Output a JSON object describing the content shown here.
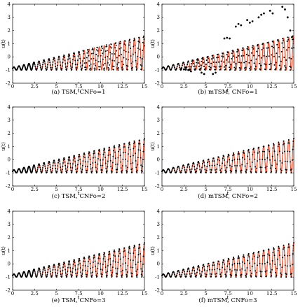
{
  "chart_data": [
    {
      "type": "line",
      "caption": "(a) TSM, CNFo=1",
      "xlabel": "t",
      "ylabel": "u(t)",
      "xlim": [
        0,
        15
      ],
      "ylim": [
        -2,
        4
      ],
      "xticks": [
        "0",
        "2.5",
        "5",
        "7.5",
        "10",
        "12.5",
        "15"
      ],
      "yticks": [
        "-2",
        "-1",
        "0",
        "1",
        "2",
        "3",
        "4"
      ],
      "grid": false,
      "series": [
        {
          "style": "solid",
          "color": "#e8401c",
          "x": [
            0,
            15
          ],
          "y": [
            -0.9,
            0.3
          ]
        },
        {
          "style": "dotted",
          "color": "#000000",
          "x": [
            0,
            15
          ],
          "y": [
            -0.9,
            0.3
          ]
        }
      ],
      "oscillation": {
        "omega": 11,
        "amp_start": 0.1,
        "amp_end": 1.3,
        "offset_start": -0.9,
        "offset_end": 0.3
      },
      "approx_until": 8,
      "approx_phase_drift": 0.55,
      "scatter_markers": false
    },
    {
      "type": "line",
      "caption": "(b) mTSM, CNFo=1",
      "xlabel": "t",
      "ylabel": "u(t)",
      "xlim": [
        0,
        15
      ],
      "ylim": [
        -2,
        4
      ],
      "xticks": [
        "0",
        "2.5",
        "5",
        "7.5",
        "10",
        "12.5",
        "15"
      ],
      "yticks": [
        "-2",
        "-1",
        "0",
        "1",
        "2",
        "3",
        "4"
      ],
      "grid": false,
      "series": [
        {
          "style": "solid",
          "color": "#e8401c"
        },
        {
          "style": "dots",
          "color": "#000000"
        }
      ],
      "oscillation": {
        "omega": 11,
        "amp_start": 0.1,
        "amp_end": 1.3,
        "offset_start": -0.9,
        "offset_end": 0.3
      },
      "approx_until": 3,
      "approx_phase_drift": 0,
      "scatter_markers": true,
      "outlier_clusters": [
        {
          "x": [
            2.2,
            2.5,
            2.7
          ],
          "y": [
            -0.9,
            -0.95,
            -0.8
          ]
        },
        {
          "x": [
            3.0,
            3.3
          ],
          "y": [
            -1.0,
            -1.1
          ]
        },
        {
          "x": [
            4.5,
            4.8
          ],
          "y": [
            -1.2,
            -1.3
          ]
        },
        {
          "x": [
            5.8,
            6.1
          ],
          "y": [
            -1.3,
            -1.2
          ]
        },
        {
          "x": [
            7.1,
            7.4,
            7.7
          ],
          "y": [
            1.4,
            1.45,
            1.4
          ]
        },
        {
          "x": [
            8.4,
            8.7,
            9.0
          ],
          "y": [
            2.3,
            2.5,
            2.4
          ]
        },
        {
          "x": [
            9.7,
            10.0,
            10.3
          ],
          "y": [
            2.8,
            2.6,
            2.7
          ]
        },
        {
          "x": [
            11.0,
            11.3,
            11.6
          ],
          "y": [
            3.0,
            3.2,
            3.3
          ]
        },
        {
          "x": [
            12.3,
            12.6
          ],
          "y": [
            3.5,
            3.3
          ]
        },
        {
          "x": [
            13.7,
            14.0,
            14.3
          ],
          "y": [
            3.8,
            3.6,
            3.0
          ]
        },
        {
          "x": [
            14.6,
            14.8
          ],
          "y": [
            2.0,
            1.5
          ]
        }
      ]
    },
    {
      "type": "line",
      "caption": "(c) TSM, CNFo=2",
      "xlabel": "t",
      "ylabel": "u(t)",
      "xlim": [
        0,
        15
      ],
      "ylim": [
        -2,
        4
      ],
      "xticks": [
        "0",
        "2.5",
        "5",
        "7.5",
        "10",
        "12.5",
        "15"
      ],
      "yticks": [
        "-2",
        "-1",
        "0",
        "1",
        "2",
        "3",
        "4"
      ],
      "grid": false,
      "series": [
        {
          "style": "solid",
          "color": "#e8401c"
        },
        {
          "style": "dotted",
          "color": "#000000"
        }
      ],
      "oscillation": {
        "omega": 11,
        "amp_start": 0.1,
        "amp_end": 1.3,
        "offset_start": -0.9,
        "offset_end": 0.3
      },
      "approx_until": 15,
      "approx_phase_drift": 0.05,
      "scatter_markers": false
    },
    {
      "type": "line",
      "caption": "(d) mTSM, CNFo=2",
      "xlabel": "t",
      "ylabel": "u(t)",
      "xlim": [
        0,
        15
      ],
      "ylim": [
        -2,
        4
      ],
      "xticks": [
        "0",
        "2.5",
        "5",
        "7.5",
        "10",
        "12.5",
        "15"
      ],
      "yticks": [
        "-2",
        "-1",
        "0",
        "1",
        "2",
        "3",
        "4"
      ],
      "grid": false,
      "series": [
        {
          "style": "solid",
          "color": "#e8401c"
        },
        {
          "style": "dots",
          "color": "#000000"
        }
      ],
      "oscillation": {
        "omega": 11,
        "amp_start": 0.1,
        "amp_end": 1.3,
        "offset_start": -0.9,
        "offset_end": 0.3
      },
      "approx_until": 15,
      "approx_phase_drift": 0.02,
      "scatter_markers": true
    },
    {
      "type": "line",
      "caption": "(e) TSM, CNFo=3",
      "xlabel": "t",
      "ylabel": "u(t)",
      "xlim": [
        0,
        15
      ],
      "ylim": [
        -2,
        4
      ],
      "xticks": [
        "0",
        "2.5",
        "5",
        "7.5",
        "10",
        "12.5",
        "15"
      ],
      "yticks": [
        "-2",
        "-1",
        "0",
        "1",
        "2",
        "3",
        "4"
      ],
      "grid": false,
      "series": [
        {
          "style": "solid",
          "color": "#e8401c"
        },
        {
          "style": "dotted",
          "color": "#000000"
        }
      ],
      "oscillation": {
        "omega": 11,
        "amp_start": 0.1,
        "amp_end": 1.3,
        "offset_start": -0.9,
        "offset_end": 0.3
      },
      "approx_until": 15,
      "approx_phase_drift": 0,
      "scatter_markers": false
    },
    {
      "type": "line",
      "caption": "(f) mTSM, CNFo=3",
      "xlabel": "t",
      "ylabel": "u(t)",
      "xlim": [
        0,
        15
      ],
      "ylim": [
        -2,
        4
      ],
      "xticks": [
        "0",
        "2.5",
        "5",
        "7.5",
        "10",
        "12.5",
        "15"
      ],
      "yticks": [
        "-2",
        "-1",
        "0",
        "1",
        "2",
        "3",
        "4"
      ],
      "grid": false,
      "series": [
        {
          "style": "solid",
          "color": "#e8401c"
        },
        {
          "style": "dots",
          "color": "#000000"
        }
      ],
      "oscillation": {
        "omega": 11,
        "amp_start": 0.1,
        "amp_end": 1.3,
        "offset_start": -0.9,
        "offset_end": 0.3
      },
      "approx_until": 15,
      "approx_phase_drift": 0,
      "scatter_markers": true
    }
  ]
}
